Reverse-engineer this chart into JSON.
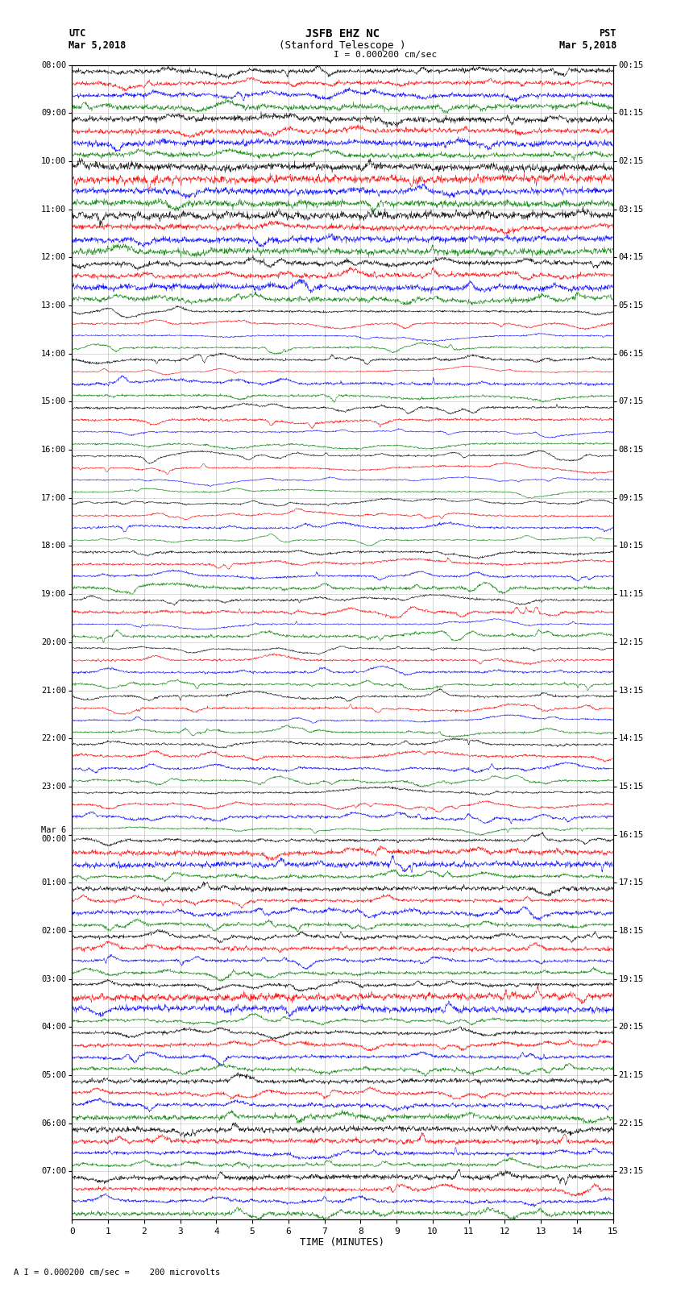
{
  "title_line1": "JSFB EHZ NC",
  "title_line2": "(Stanford Telescope )",
  "scale_label": " = 0.000200 cm/sec",
  "left_label_top": "UTC",
  "left_label_date": "Mar 5,2018",
  "right_label_top": "PST",
  "right_label_date": "Mar 5,2018",
  "footnote": "A I = 0.000200 cm/sec =    200 microvolts",
  "utc_times": [
    "08:00",
    "09:00",
    "10:00",
    "11:00",
    "12:00",
    "13:00",
    "14:00",
    "15:00",
    "16:00",
    "17:00",
    "18:00",
    "19:00",
    "20:00",
    "21:00",
    "22:00",
    "23:00",
    "Mar 6\n00:00",
    "01:00",
    "02:00",
    "03:00",
    "04:00",
    "05:00",
    "06:00",
    "07:00"
  ],
  "pst_times": [
    "00:15",
    "01:15",
    "02:15",
    "03:15",
    "04:15",
    "05:15",
    "06:15",
    "07:15",
    "08:15",
    "09:15",
    "10:15",
    "11:15",
    "12:15",
    "13:15",
    "14:15",
    "15:15",
    "16:15",
    "17:15",
    "18:15",
    "19:15",
    "20:15",
    "21:15",
    "22:15",
    "23:15"
  ],
  "colors": [
    "black",
    "red",
    "blue",
    "green"
  ],
  "num_rows": 24,
  "traces_per_row": 4,
  "minutes": 15,
  "samples": 1800,
  "x_ticks": [
    0,
    1,
    2,
    3,
    4,
    5,
    6,
    7,
    8,
    9,
    10,
    11,
    12,
    13,
    14,
    15
  ],
  "x_label": "TIME (MINUTES)"
}
